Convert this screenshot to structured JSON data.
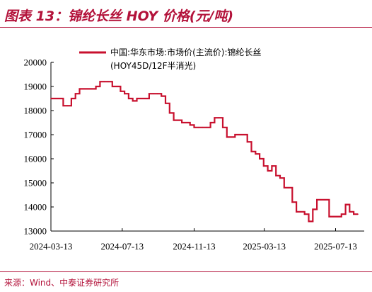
{
  "header": {
    "title": "图表 13：锦纶长丝 HOY 价格(元/吨)"
  },
  "footer": {
    "source": "来源：Wind、中泰证券研究所"
  },
  "chart_data": {
    "type": "line",
    "title": "图表 13：锦纶长丝 HOY 价格(元/吨)",
    "xlabel": "",
    "ylabel": "",
    "ylim": [
      13000,
      20000
    ],
    "xlim": [
      "2024-03-13",
      "2025-08-31"
    ],
    "yticks": [
      13000,
      14000,
      15000,
      16000,
      17000,
      18000,
      19000,
      20000
    ],
    "xticks": [
      "2024-03-13",
      "2024-07-13",
      "2024-11-13",
      "2025-03-13",
      "2025-07-13"
    ],
    "grid": false,
    "legend_position": "top",
    "accent_color": "#c8102e",
    "series": [
      {
        "name": "中国:华东市场:市场价(主流价):锦纶长丝(HOY45D/12F半消光)",
        "color": "#c8102e",
        "x": [
          "2024-03-13",
          "2024-03-20",
          "2024-03-27",
          "2024-04-03",
          "2024-04-10",
          "2024-04-17",
          "2024-04-24",
          "2024-05-01",
          "2024-05-08",
          "2024-05-15",
          "2024-05-22",
          "2024-05-29",
          "2024-06-05",
          "2024-06-12",
          "2024-06-19",
          "2024-06-26",
          "2024-07-03",
          "2024-07-10",
          "2024-07-17",
          "2024-07-24",
          "2024-07-31",
          "2024-08-07",
          "2024-08-14",
          "2024-08-21",
          "2024-08-28",
          "2024-09-04",
          "2024-09-11",
          "2024-09-18",
          "2024-09-25",
          "2024-10-02",
          "2024-10-09",
          "2024-10-16",
          "2024-10-23",
          "2024-10-30",
          "2024-11-06",
          "2024-11-13",
          "2024-11-20",
          "2024-11-27",
          "2024-12-04",
          "2024-12-11",
          "2024-12-18",
          "2024-12-25",
          "2025-01-01",
          "2025-01-08",
          "2025-01-15",
          "2025-01-22",
          "2025-01-29",
          "2025-02-05",
          "2025-02-12",
          "2025-02-19",
          "2025-02-26",
          "2025-03-05",
          "2025-03-12",
          "2025-03-19",
          "2025-03-26",
          "2025-04-02",
          "2025-04-09",
          "2025-04-16",
          "2025-04-23",
          "2025-04-30",
          "2025-05-07",
          "2025-05-14",
          "2025-05-21",
          "2025-05-28",
          "2025-06-04",
          "2025-06-11",
          "2025-06-18",
          "2025-06-25",
          "2025-07-02",
          "2025-07-09",
          "2025-07-16",
          "2025-07-23",
          "2025-07-30",
          "2025-08-06",
          "2025-08-13",
          "2025-08-20"
        ],
        "values": [
          18500,
          18500,
          18500,
          18200,
          18200,
          18500,
          18700,
          18900,
          18900,
          18900,
          18900,
          19000,
          19200,
          19200,
          19200,
          19000,
          19000,
          18800,
          18700,
          18500,
          18400,
          18500,
          18500,
          18500,
          18700,
          18700,
          18700,
          18600,
          18300,
          17900,
          17600,
          17600,
          17500,
          17500,
          17400,
          17300,
          17300,
          17300,
          17300,
          17500,
          17700,
          17700,
          17300,
          16900,
          16900,
          17000,
          17000,
          17000,
          16700,
          16300,
          16200,
          16000,
          15700,
          15500,
          15700,
          15300,
          15200,
          14800,
          14800,
          14200,
          13800,
          13800,
          13700,
          13400,
          13900,
          14300,
          14300,
          14300,
          13600,
          13600,
          13600,
          13700,
          14100,
          13800,
          13700,
          13700
        ]
      }
    ]
  }
}
